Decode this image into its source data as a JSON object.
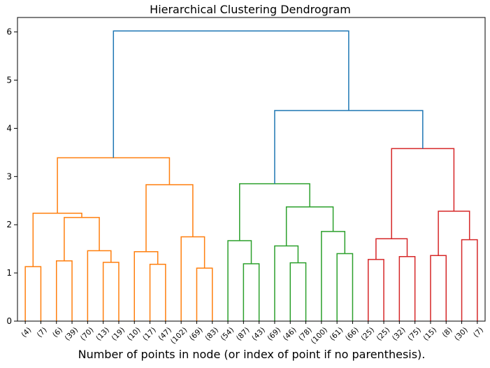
{
  "chart_data": {
    "type": "dendrogram",
    "title": "Hierarchical Clustering Dendrogram",
    "xlabel": "Number of points in node (or index of point if no parenthesis).",
    "ylabel": "",
    "ylim": [
      0,
      6.3
    ],
    "yticks": [
      0,
      1,
      2,
      3,
      4,
      5,
      6
    ],
    "grid": false,
    "colors": {
      "orange": "#ff7f0e",
      "green": "#2ca02c",
      "red": "#d62728",
      "blue": "#1f77b4"
    },
    "leaves": [
      "(4)",
      "(7)",
      "(6)",
      "(39)",
      "(70)",
      "(13)",
      "(19)",
      "(10)",
      "(17)",
      "(47)",
      "(102)",
      "(69)",
      "(83)",
      "(54)",
      "(87)",
      "(43)",
      "(69)",
      "(46)",
      "(78)",
      "(100)",
      "(61)",
      "(66)",
      "(25)",
      "(25)",
      "(32)",
      "(75)",
      "(15)",
      "(8)",
      "(30)",
      "(7)"
    ],
    "merges": [
      {
        "left": 0,
        "right": 1,
        "height": 1.13,
        "color": "orange"
      },
      {
        "left": 2,
        "right": 3,
        "height": 1.25,
        "color": "orange"
      },
      {
        "left": 5,
        "right": 6,
        "height": 1.22,
        "color": "orange"
      },
      {
        "left": 4,
        "right": "m2",
        "height": 1.46,
        "color": "orange"
      },
      {
        "left": "m1",
        "right": "m3",
        "height": 2.15,
        "color": "orange"
      },
      {
        "left": "m0",
        "right": "m4",
        "height": 2.24,
        "color": "orange"
      },
      {
        "left": 8,
        "right": 9,
        "height": 1.18,
        "color": "orange"
      },
      {
        "left": 7,
        "right": "m6",
        "height": 1.44,
        "color": "orange"
      },
      {
        "left": 11,
        "right": 12,
        "height": 1.1,
        "color": "orange"
      },
      {
        "left": 10,
        "right": "m8",
        "height": 1.75,
        "color": "orange"
      },
      {
        "left": "m7",
        "right": "m9",
        "height": 2.83,
        "color": "orange"
      },
      {
        "left": "m5",
        "right": "m10",
        "height": 3.39,
        "color": "orange"
      },
      {
        "left": 14,
        "right": 15,
        "height": 1.19,
        "color": "green"
      },
      {
        "left": 13,
        "right": "m12",
        "height": 1.67,
        "color": "green"
      },
      {
        "left": 17,
        "right": 18,
        "height": 1.21,
        "color": "green"
      },
      {
        "left": 16,
        "right": "m14",
        "height": 1.56,
        "color": "green"
      },
      {
        "left": 20,
        "right": 21,
        "height": 1.4,
        "color": "green"
      },
      {
        "left": 19,
        "right": "m16",
        "height": 1.86,
        "color": "green"
      },
      {
        "left": "m15",
        "right": "m17",
        "height": 2.37,
        "color": "green"
      },
      {
        "left": "m13",
        "right": "m18",
        "height": 2.85,
        "color": "green"
      },
      {
        "left": 22,
        "right": 23,
        "height": 1.28,
        "color": "red"
      },
      {
        "left": 24,
        "right": 25,
        "height": 1.34,
        "color": "red"
      },
      {
        "left": "m20",
        "right": "m21",
        "height": 1.71,
        "color": "red"
      },
      {
        "left": 26,
        "right": 27,
        "height": 1.36,
        "color": "red"
      },
      {
        "left": 28,
        "right": 29,
        "height": 1.69,
        "color": "red"
      },
      {
        "left": "m23",
        "right": "m24",
        "height": 2.28,
        "color": "red"
      },
      {
        "left": "m22",
        "right": "m25",
        "height": 3.58,
        "color": "red"
      },
      {
        "left": "m19",
        "right": "m26",
        "height": 4.37,
        "color": "blue"
      },
      {
        "left": "m11",
        "right": "m27",
        "height": 6.02,
        "color": "blue"
      }
    ]
  }
}
